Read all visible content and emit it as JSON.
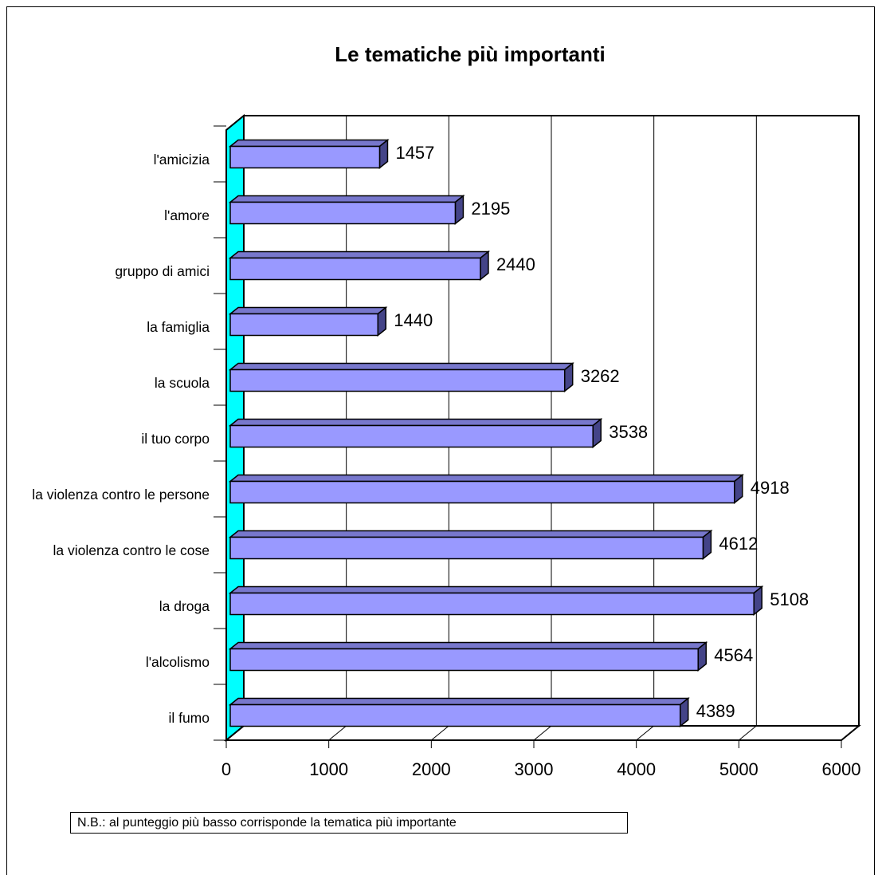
{
  "chart_data": {
    "type": "bar",
    "orientation": "horizontal",
    "title": "Le tematiche più importanti",
    "categories": [
      "l'amicizia",
      "l'amore",
      "gruppo di amici",
      "la famiglia",
      "la scuola",
      "il tuo corpo",
      "la violenza contro le persone",
      "la violenza contro le cose",
      "la droga",
      "l'alcolismo",
      "il fumo"
    ],
    "values": [
      1457,
      2195,
      2440,
      1440,
      3262,
      3538,
      4918,
      4612,
      5108,
      4564,
      4389
    ],
    "color": "#9999ff",
    "wall_color": "#00ffff",
    "xlim": [
      0,
      6000
    ],
    "xticks": [
      0,
      1000,
      2000,
      3000,
      4000,
      5000,
      6000
    ],
    "grid": true,
    "note": "N.B.: al punteggio più basso corrisponde la tematica più importante"
  }
}
